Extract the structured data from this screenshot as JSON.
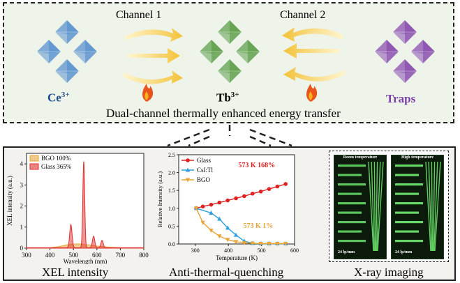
{
  "top": {
    "channel1": "Channel 1",
    "channel2": "Channel 2",
    "ce_label": "Ce",
    "ce_sup": "3+",
    "tb_label": "Tb",
    "tb_sup": "3+",
    "traps_label": "Traps",
    "caption": "Dual-channel thermally enhanced energy transfer",
    "colors": {
      "ce": "#5b93cf",
      "tb": "#5fa04c",
      "traps": "#8a4fb0",
      "ce_text": "#1f4e8c",
      "traps_text": "#7b3fa8",
      "arrow": "#f3c23a"
    }
  },
  "bottom": {
    "xel_caption": "XEL intensity",
    "atq_caption": "Anti-thermal-quenching",
    "xray_caption": "X-ray imaging",
    "xray": {
      "room_label": "Room temperature",
      "high_label": "High temperature",
      "res_left": "24 lp/mm",
      "res_right": "24 lp/mm"
    }
  },
  "chart_data": [
    {
      "type": "line",
      "xlabel": "Wavelength (nm)",
      "ylabel": "XEL intensity (a.u.)",
      "xlim": [
        300,
        800
      ],
      "ylim": [
        0,
        4.5
      ],
      "xticks": [
        300,
        400,
        500,
        600,
        700,
        800
      ],
      "yticks": [
        0,
        1,
        2,
        3,
        4
      ],
      "legend_position": "top-left",
      "series": [
        {
          "name": "BGO 100%",
          "color": "#e8a53a",
          "x": [
            300,
            400,
            440,
            470,
            500,
            530,
            560,
            600,
            650,
            700,
            800
          ],
          "y": [
            0,
            0.02,
            0.08,
            0.15,
            0.2,
            0.2,
            0.16,
            0.1,
            0.05,
            0.02,
            0
          ]
        },
        {
          "name": "Glass 365%",
          "color": "#e03030",
          "peaks": [
            {
              "x": 489,
              "y": 1.1
            },
            {
              "x": 544,
              "y": 4.1
            },
            {
              "x": 586,
              "y": 0.55
            },
            {
              "x": 622,
              "y": 0.35
            }
          ]
        }
      ]
    },
    {
      "type": "line",
      "xlabel": "Temperature (K)",
      "ylabel": "Relative Intensity (a.u.)",
      "xlim": [
        250,
        600
      ],
      "ylim": [
        0,
        2.5
      ],
      "xticks": [
        300,
        400,
        500,
        600
      ],
      "yticks": [
        0.0,
        0.5,
        1.0,
        1.5,
        2.0,
        2.5
      ],
      "legend_position": "top-left",
      "annotations": [
        {
          "text": "573 K 168%",
          "color": "#e02020"
        },
        {
          "text": "573 K 1%",
          "color": "#e8a53a"
        }
      ],
      "series": [
        {
          "name": "Glass",
          "color": "#e02020",
          "marker": "circle",
          "x": [
            303,
            323,
            348,
            373,
            398,
            423,
            448,
            473,
            498,
            523,
            548,
            573
          ],
          "y": [
            1.0,
            1.05,
            1.1,
            1.16,
            1.22,
            1.28,
            1.34,
            1.41,
            1.47,
            1.54,
            1.61,
            1.68
          ]
        },
        {
          "name": "CsI:Tl",
          "color": "#2f9ee0",
          "marker": "triangle",
          "x": [
            303,
            348,
            373,
            398,
            423,
            448,
            473,
            498,
            523,
            548,
            573
          ],
          "y": [
            1.0,
            0.87,
            0.7,
            0.45,
            0.25,
            0.08,
            0.02,
            0.01,
            0.01,
            0.01,
            0.01
          ]
        },
        {
          "name": "BGO",
          "color": "#e8a53a",
          "marker": "triangle-down",
          "x": [
            303,
            323,
            348,
            373,
            398,
            423,
            448,
            473,
            498,
            523,
            548,
            573
          ],
          "y": [
            1.0,
            0.6,
            0.38,
            0.22,
            0.12,
            0.06,
            0.03,
            0.02,
            0.01,
            0.01,
            0.01,
            0.01
          ]
        }
      ]
    }
  ]
}
